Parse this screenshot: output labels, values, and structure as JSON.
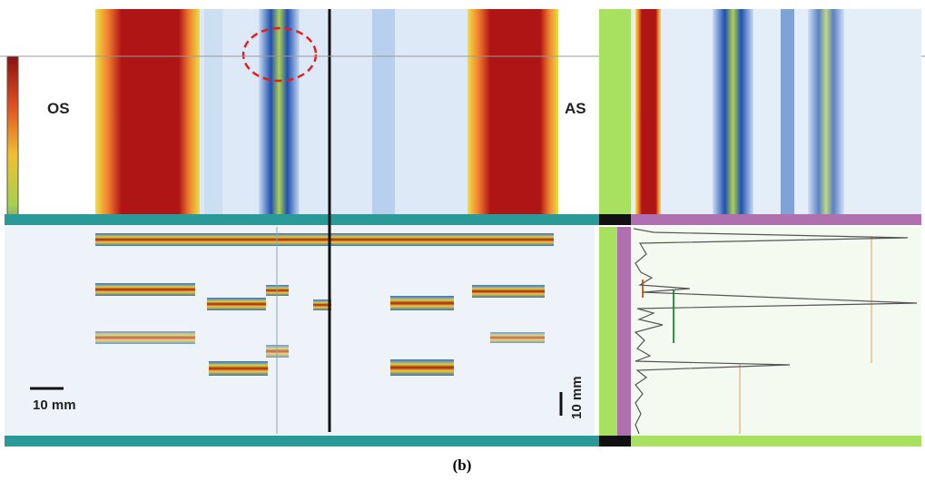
{
  "labels": {
    "left": "OS",
    "right": "AS"
  },
  "scale_bars": {
    "horizontal": "10 mm",
    "vertical": "10 mm"
  },
  "caption": "(b)"
}
